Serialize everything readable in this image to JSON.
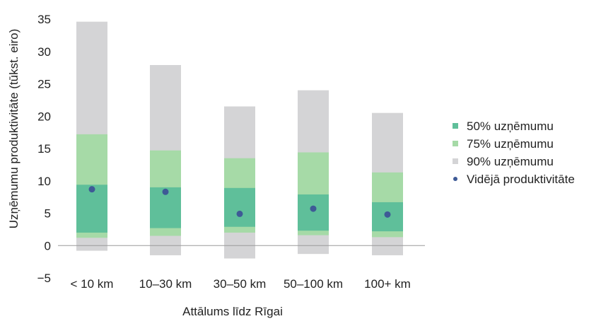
{
  "chart_data": {
    "type": "bar",
    "subtype": "range-bars-with-mean-dots",
    "title": "",
    "xlabel": "Attālums līdz Rīgai",
    "ylabel": "Uzņēmumu produktivitāte (tūkst. eiro)",
    "ylim": [
      -5,
      35
    ],
    "yticks": [
      -5,
      0,
      5,
      10,
      15,
      20,
      25,
      30,
      35
    ],
    "grid": false,
    "legend_position": "right",
    "categories": [
      "< 10 km",
      "10–30 km",
      "30–50 km",
      "50–100 km",
      "100+ km"
    ],
    "series": [
      {
        "name": "50% uzņēmumu",
        "kind": "range",
        "color": "#5fbf9a",
        "ranges": [
          [
            2.0,
            9.4
          ],
          [
            2.7,
            9.0
          ],
          [
            2.9,
            8.9
          ],
          [
            2.3,
            7.9
          ],
          [
            2.2,
            6.7
          ]
        ]
      },
      {
        "name": "75% uzņēmumu",
        "kind": "range",
        "color": "#a6daa7",
        "ranges": [
          [
            1.2,
            17.2
          ],
          [
            1.5,
            14.7
          ],
          [
            2.0,
            13.5
          ],
          [
            1.6,
            14.4
          ],
          [
            1.3,
            11.3
          ]
        ]
      },
      {
        "name": "90% uzņēmumu",
        "kind": "range",
        "color": "#d4d4d6",
        "ranges": [
          [
            -0.8,
            34.6
          ],
          [
            -1.5,
            27.9
          ],
          [
            -2.0,
            21.5
          ],
          [
            -1.3,
            24.0
          ],
          [
            -1.5,
            20.5
          ]
        ]
      },
      {
        "name": "Vidējā produktivitāte",
        "kind": "point",
        "color": "#3e5a96",
        "values": [
          8.7,
          8.3,
          4.9,
          5.7,
          4.8
        ]
      }
    ]
  }
}
